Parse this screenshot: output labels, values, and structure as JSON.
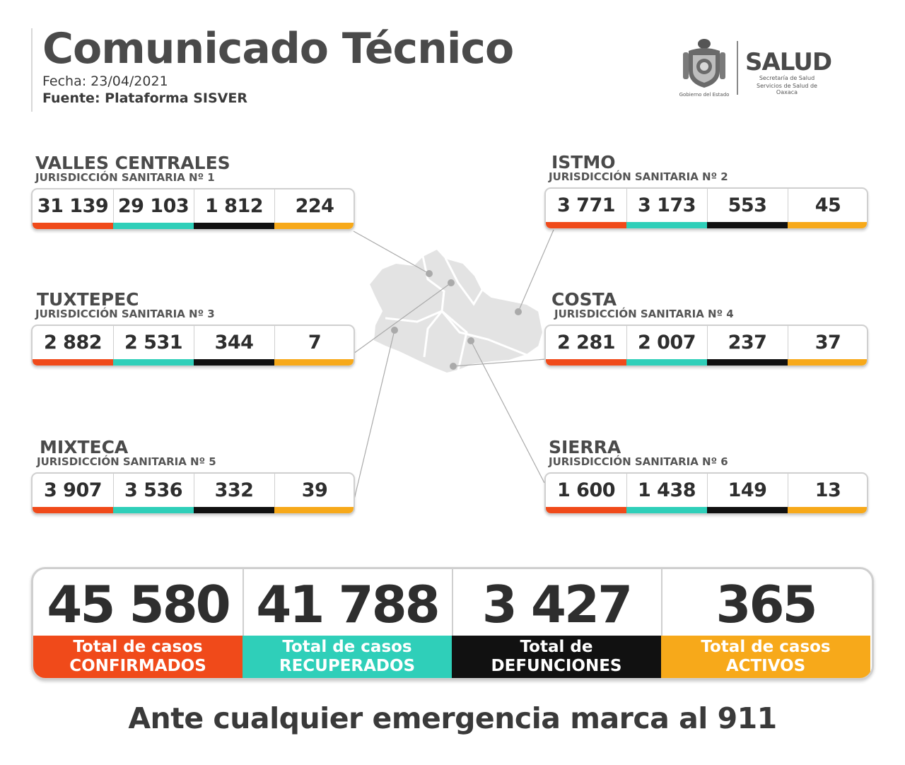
{
  "header": {
    "title": "Comunicado Técnico",
    "date": "Fecha: 23/04/2021",
    "source": "Fuente: Plataforma SISVER"
  },
  "logo": {
    "government": "Gobierno del Estado",
    "brand": "SALUD",
    "subtitle_1": "Secretaría de Salud",
    "subtitle_2": "Servicios de Salud de Oaxaca"
  },
  "colors": {
    "confirmed": "#f04a1a",
    "recovered": "#2fcfb9",
    "deaths": "#111111",
    "active": "#f7a91a"
  },
  "regions": [
    {
      "name": "VALLES CENTRALES",
      "jurisdiction": "JURISDICCIÓN SANITARIA Nº 1",
      "values": [
        "31 139",
        "29 103",
        "1 812",
        "224"
      ]
    },
    {
      "name": "ISTMO",
      "jurisdiction": "JURISDICCIÓN SANITARIA Nº 2",
      "values": [
        "3 771",
        "3 173",
        "553",
        "45"
      ]
    },
    {
      "name": "TUXTEPEC",
      "jurisdiction": "JURISDICCIÓN SANITARIA Nº 3",
      "values": [
        "2 882",
        "2 531",
        "344",
        "7"
      ]
    },
    {
      "name": "COSTA",
      "jurisdiction": "JURISDICCIÓN SANITARIA Nº 4",
      "values": [
        "2 281",
        "2 007",
        "237",
        "37"
      ]
    },
    {
      "name": "MIXTECA",
      "jurisdiction": "JURISDICCIÓN SANITARIA Nº 5",
      "values": [
        "3 907",
        "3 536",
        "332",
        "39"
      ]
    },
    {
      "name": "SIERRA",
      "jurisdiction": "JURISDICCIÓN SANITARIA Nº 6",
      "values": [
        "1 600",
        "1 438",
        "149",
        "13"
      ]
    }
  ],
  "totals": [
    {
      "value": "45 580",
      "label_1": "Total de casos",
      "label_2": "CONFIRMADOS"
    },
    {
      "value": "41 788",
      "label_1": "Total de casos",
      "label_2": "RECUPERADOS"
    },
    {
      "value": "3 427",
      "label_1": "Total de",
      "label_2": "DEFUNCIONES"
    },
    {
      "value": "365",
      "label_1": "Total de casos",
      "label_2": "ACTIVOS"
    }
  ],
  "footer": "Ante cualquier emergencia marca al 911"
}
